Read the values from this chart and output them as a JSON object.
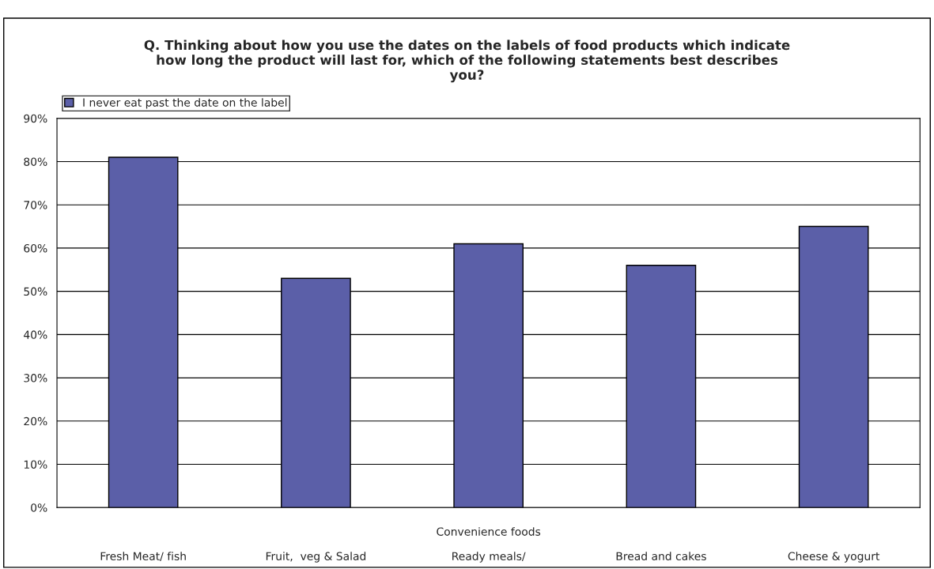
{
  "chart_data": {
    "type": "bar",
    "title": "Q. Thinking about how you use the dates on the labels of food products which indicate\nhow long the product will last for, which of the following statements best describes\nyou?",
    "categories": [
      "Fresh Meat/ fish",
      "Fruit,  veg & Salad",
      "Convenience foods\n\nReady meals/",
      "Bread and cakes",
      "Cheese & yogurt"
    ],
    "series": [
      {
        "name": "I never eat past the date on the label",
        "color": "#5b5fa8",
        "values": [
          81,
          53,
          61,
          56,
          65
        ]
      }
    ],
    "ylim": [
      0,
      90
    ],
    "yticks": [
      {
        "value": 0,
        "label": "0%"
      },
      {
        "value": 10,
        "label": "10%"
      },
      {
        "value": 20,
        "label": "20%"
      },
      {
        "value": 30,
        "label": "30%"
      },
      {
        "value": 40,
        "label": "40%"
      },
      {
        "value": 50,
        "label": "50%"
      },
      {
        "value": 60,
        "label": "60%"
      },
      {
        "value": 70,
        "label": "70%"
      },
      {
        "value": 80,
        "label": "80%"
      },
      {
        "value": 90,
        "label": "90%"
      }
    ],
    "grid": "y",
    "legend": "top left"
  }
}
